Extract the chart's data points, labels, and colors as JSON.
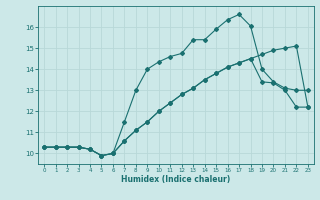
{
  "xlabel": "Humidex (Indice chaleur)",
  "bg_color": "#cce8e8",
  "grid_color": "#b8d8d8",
  "line_color": "#1a7070",
  "xlim": [
    -0.5,
    23.5
  ],
  "ylim": [
    9.5,
    17.0
  ],
  "yticks": [
    10,
    11,
    12,
    13,
    14,
    15,
    16
  ],
  "xticks": [
    0,
    1,
    2,
    3,
    4,
    5,
    6,
    7,
    8,
    9,
    10,
    11,
    12,
    13,
    14,
    15,
    16,
    17,
    18,
    19,
    20,
    21,
    22,
    23
  ],
  "series1_x": [
    0,
    1,
    2,
    3,
    4,
    5,
    6,
    7,
    8,
    9,
    10,
    11,
    12,
    13,
    14,
    15,
    16,
    17,
    18,
    19,
    20,
    21,
    22,
    23
  ],
  "series1_y": [
    10.3,
    10.3,
    10.3,
    10.3,
    10.2,
    9.9,
    10.0,
    10.6,
    11.1,
    11.5,
    12.0,
    12.4,
    12.8,
    13.1,
    13.5,
    13.8,
    14.1,
    14.3,
    14.5,
    14.7,
    14.9,
    15.0,
    15.1,
    12.2
  ],
  "series2_x": [
    0,
    1,
    2,
    3,
    4,
    5,
    6,
    7,
    8,
    9,
    10,
    11,
    12,
    13,
    14,
    15,
    16,
    17,
    18,
    19,
    20,
    21,
    22,
    23
  ],
  "series2_y": [
    10.3,
    10.3,
    10.3,
    10.3,
    10.2,
    9.9,
    10.0,
    11.5,
    13.0,
    14.0,
    14.35,
    14.6,
    14.75,
    15.4,
    15.4,
    15.9,
    16.35,
    16.6,
    16.05,
    14.0,
    13.4,
    13.1,
    13.0,
    13.0
  ],
  "series3_x": [
    0,
    1,
    2,
    3,
    4,
    5,
    6,
    7,
    8,
    9,
    10,
    11,
    12,
    13,
    14,
    15,
    16,
    17,
    18,
    19,
    20,
    21,
    22,
    23
  ],
  "series3_y": [
    10.3,
    10.3,
    10.3,
    10.3,
    10.2,
    9.9,
    10.0,
    10.6,
    11.1,
    11.5,
    12.0,
    12.4,
    12.8,
    13.1,
    13.5,
    13.8,
    14.1,
    14.3,
    14.5,
    13.4,
    13.35,
    13.0,
    12.2,
    12.2
  ]
}
